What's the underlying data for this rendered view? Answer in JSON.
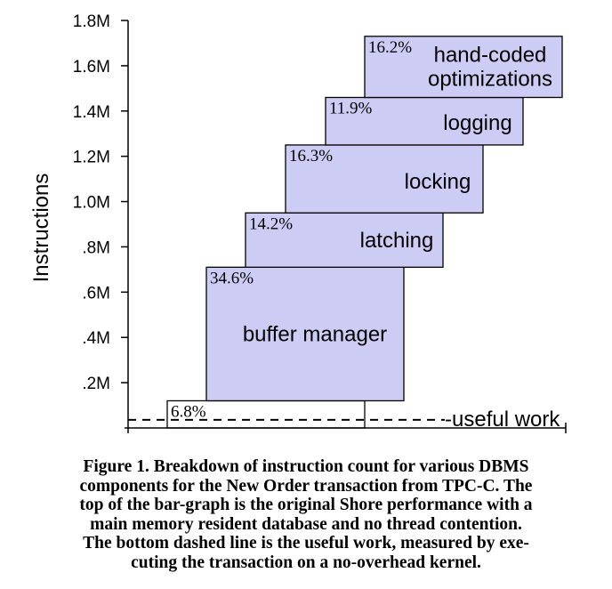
{
  "chart_data": {
    "type": "bar",
    "subtype": "stacked-breakdown",
    "ylabel": "Instructions",
    "ylim": [
      0,
      1800000
    ],
    "y_tick_labels": [
      ".2M",
      ".4M",
      ".6M",
      ".8M",
      "1.0M",
      "1.2M",
      "1.4M",
      "1.6M",
      "1.8M"
    ],
    "y_tick_values": [
      200000,
      400000,
      600000,
      800000,
      1000000,
      1200000,
      1400000,
      1600000,
      1800000
    ],
    "grid": false,
    "bar_color": "#ccccf5",
    "segments": [
      {
        "name": "",
        "percent": "6.8%",
        "start": 0,
        "end": 120000
      },
      {
        "name": "buffer manager",
        "percent": "34.6%",
        "start": 120000,
        "end": 710000
      },
      {
        "name": "latching",
        "percent": "14.2%",
        "start": 710000,
        "end": 950000
      },
      {
        "name": "locking",
        "percent": "16.3%",
        "start": 950000,
        "end": 1250000
      },
      {
        "name": "logging",
        "percent": "11.9%",
        "start": 1250000,
        "end": 1460000
      },
      {
        "name": "hand-coded optimizations",
        "name_lines": [
          "hand-coded",
          "optimizations"
        ],
        "percent": "16.2%",
        "start": 1460000,
        "end": 1730000
      }
    ],
    "reference_line": {
      "label": "-useful work",
      "value": 40000,
      "style": "dashed"
    }
  },
  "caption": "Figure 1. Breakdown of instruction count for various DBMS components for the New Order transaction from TPC-C. The top of the bar-graph is the original Shore performance with a main memory resident database and no thread contention. The bottom dashed line is the useful work, measured by executing the transaction on a no-overhead kernel.",
  "caption_lines": [
    "Figure 1. Breakdown of instruction count for various DBMS",
    "components for the New Order transaction from TPC-C. The",
    "top of the bar-graph is the original Shore performance with a",
    "main memory resident database and no thread contention.",
    "The bottom dashed line is the useful work, measured by exe-",
    "cuting the transaction on a no-overhead kernel."
  ]
}
